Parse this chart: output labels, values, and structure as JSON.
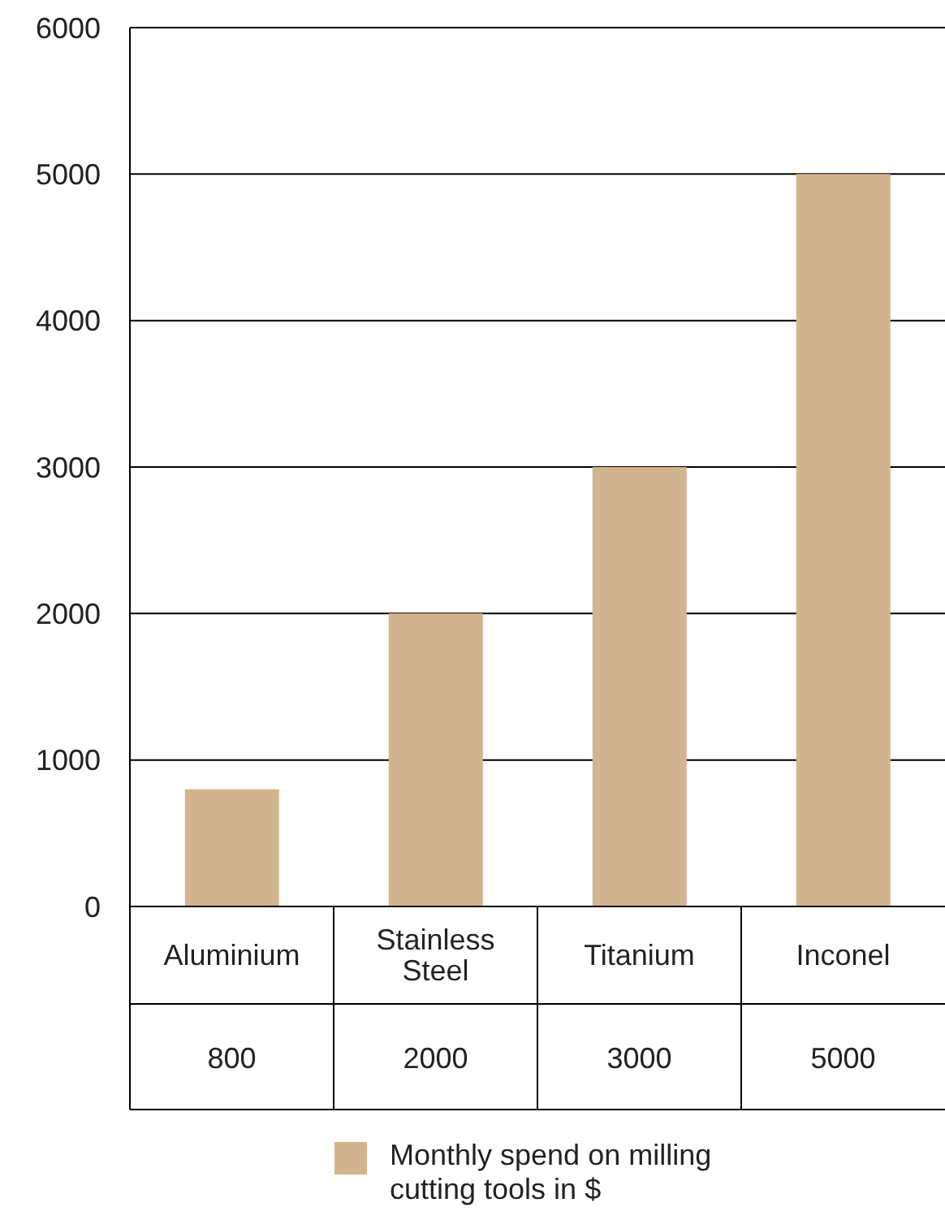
{
  "chart_data": {
    "type": "bar",
    "categories": [
      "Aluminium",
      "Stainless Steel",
      "Titanium",
      "Inconel"
    ],
    "series": [
      {
        "name": "Monthly spend on milling cutting tools in $",
        "color": "#d2b48f",
        "values": [
          800,
          2000,
          3000,
          5000
        ]
      }
    ],
    "ylim": [
      0,
      6000
    ],
    "yticks": [
      0,
      1000,
      2000,
      3000,
      4000,
      5000,
      6000
    ],
    "grid": "y",
    "legend": "bottom",
    "data_labels": true
  }
}
